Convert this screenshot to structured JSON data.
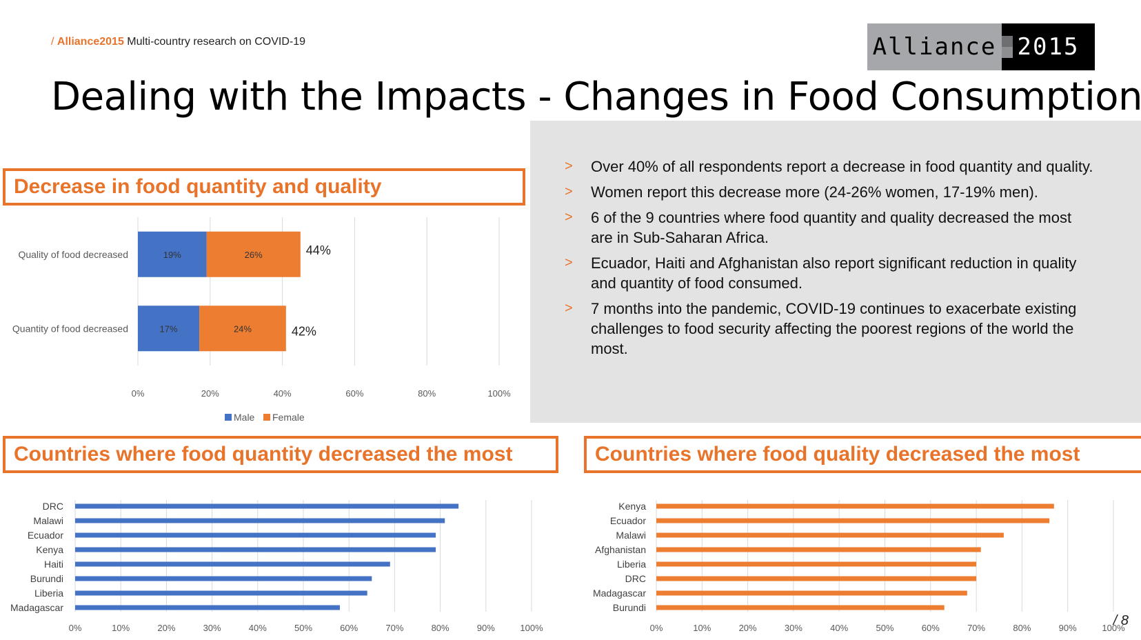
{
  "header": {
    "breadcrumb_prefix": "/ ",
    "breadcrumb_brand": "Alliance2015",
    "breadcrumb_text": " Multi-country research on COVID-19",
    "logo_left": "Alliance",
    "logo_right": "2015",
    "title": "Dealing with the Impacts - Changes in Food Consumption"
  },
  "sections": {
    "decrease": "Decrease in food quantity and quality",
    "quantity_countries": "Countries where food quantity decreased the most",
    "quality_countries": "Countries where food quality decreased the most"
  },
  "notes": [
    "Over 40% of all respondents report a decrease in food quantity and quality.",
    "Women report this decrease more (24-26% women, 17-19% men).",
    "6 of the 9 countries where food quantity and quality decreased the most are in Sub-Saharan Africa.",
    "Ecuador, Haiti and Afghanistan also report significant reduction in quality and quantity of food consumed.",
    "7 months into the pandemic, COVID-19 continues to exacerbate existing challenges to food security affecting the poorest regions of the world the most."
  ],
  "note_marker": ">",
  "page_number": "/ 8",
  "colors": {
    "accent": "#e8732a",
    "male": "#4472c4",
    "female": "#ed7d31",
    "panel": "#e3e3e3"
  },
  "chart_data": [
    {
      "type": "bar",
      "orientation": "horizontal",
      "stacked": true,
      "categories": [
        "Quality of food decreased",
        "Quantity of food decreased"
      ],
      "series": [
        {
          "name": "Male",
          "values": [
            19,
            17
          ],
          "labels": [
            "19%",
            "17%"
          ]
        },
        {
          "name": "Female",
          "values": [
            26,
            24
          ],
          "labels": [
            "26%",
            "24%"
          ]
        }
      ],
      "totals": [
        44,
        42
      ],
      "total_labels": [
        "44%",
        "42%"
      ],
      "xlim": [
        0,
        100
      ],
      "ticks": [
        "0%",
        "20%",
        "40%",
        "60%",
        "80%",
        "100%"
      ],
      "legend": "bottom",
      "grid": true
    },
    {
      "type": "bar",
      "orientation": "horizontal",
      "categories": [
        "DRC",
        "Malawi",
        "Ecuador",
        "Kenya",
        "Haiti",
        "Burundi",
        "Liberia",
        "Madagascar"
      ],
      "values": [
        84,
        81,
        79,
        79,
        69,
        65,
        64,
        58
      ],
      "xlim": [
        0,
        100
      ],
      "ticks": [
        "0%",
        "10%",
        "20%",
        "30%",
        "40%",
        "50%",
        "60%",
        "70%",
        "80%",
        "90%",
        "100%"
      ],
      "grid": true
    },
    {
      "type": "bar",
      "orientation": "horizontal",
      "categories": [
        "Kenya",
        "Ecuador",
        "Malawi",
        "Afghanistan",
        "Liberia",
        "DRC",
        "Madagascar",
        "Burundi"
      ],
      "values": [
        87,
        86,
        76,
        71,
        70,
        70,
        68,
        63
      ],
      "xlim": [
        0,
        100
      ],
      "ticks": [
        "0%",
        "10%",
        "20%",
        "30%",
        "40%",
        "50%",
        "60%",
        "70%",
        "80%",
        "90%",
        "100%"
      ],
      "grid": true
    }
  ]
}
